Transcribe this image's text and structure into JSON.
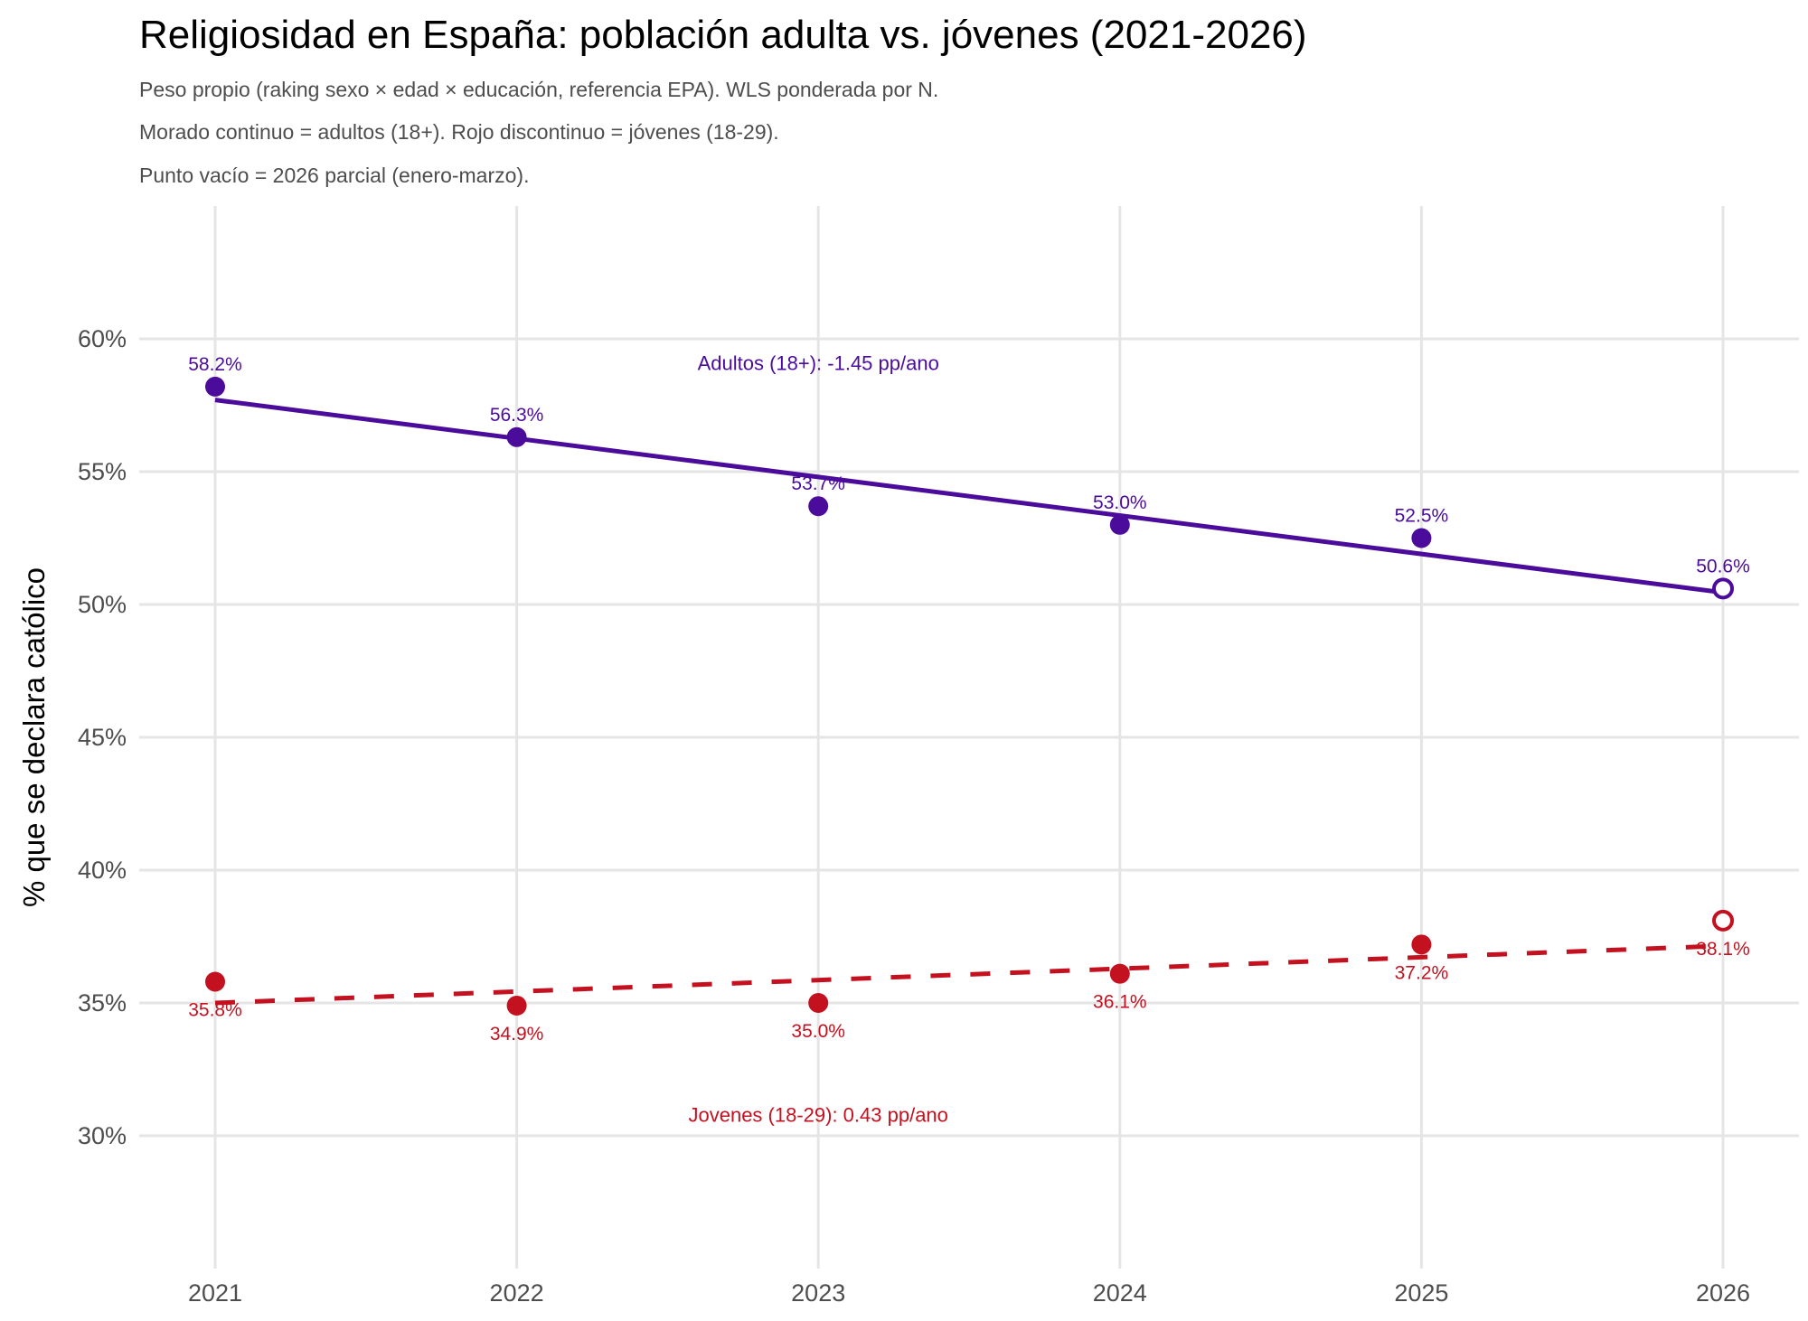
{
  "chart_data": {
    "type": "line",
    "title": "Religiosidad en España: población adulta vs. jóvenes (2021-2026)",
    "subtitle": [
      "Peso propio (raking sexo × edad × educación, referencia EPA). WLS ponderada por N.",
      "Morado continuo = adultos (18+). Rojo discontinuo = jóvenes (18-29).",
      "Punto vacío = 2026 parcial (enero-marzo)."
    ],
    "xlabel": "",
    "ylabel": "% que se declara católico",
    "x": [
      2021,
      2022,
      2023,
      2024,
      2025,
      2026
    ],
    "xticks": [
      "2021",
      "2022",
      "2023",
      "2024",
      "2025",
      "2026"
    ],
    "ylim": [
      25,
      65
    ],
    "yticks": [
      30,
      35,
      40,
      45,
      50,
      55,
      60
    ],
    "ytick_labels": [
      "30%",
      "35%",
      "40%",
      "45%",
      "50%",
      "55%",
      "60%"
    ],
    "grid": true,
    "partial_x": 2026,
    "series": [
      {
        "key": "adultos",
        "color": "#4B0C9C",
        "linestyle": "solid",
        "values": [
          58.2,
          56.3,
          53.7,
          53.0,
          52.5,
          50.6
        ],
        "labels": [
          "58.2%",
          "56.3%",
          "53.7%",
          "53.0%",
          "52.5%",
          "50.6%"
        ],
        "label_position": "above",
        "trend": {
          "start": 57.7,
          "slope": -1.45
        },
        "annotation": {
          "text": "Adultos (18+): -1.45 pp/ano",
          "x": 2023,
          "y": 59.1
        }
      },
      {
        "key": "jovenes",
        "color": "#C4111F",
        "linestyle": "dashed",
        "values": [
          35.8,
          34.9,
          35.0,
          36.1,
          37.2,
          38.1
        ],
        "labels": [
          "35.8%",
          "34.9%",
          "35.0%",
          "36.1%",
          "37.2%",
          "38.1%"
        ],
        "label_position": "below",
        "trend": {
          "start": 35.0,
          "slope": 0.43
        },
        "annotation": {
          "text": "Jovenes (18-29): 0.43 pp/ano",
          "x": 2023,
          "y": 30.8
        }
      }
    ]
  }
}
